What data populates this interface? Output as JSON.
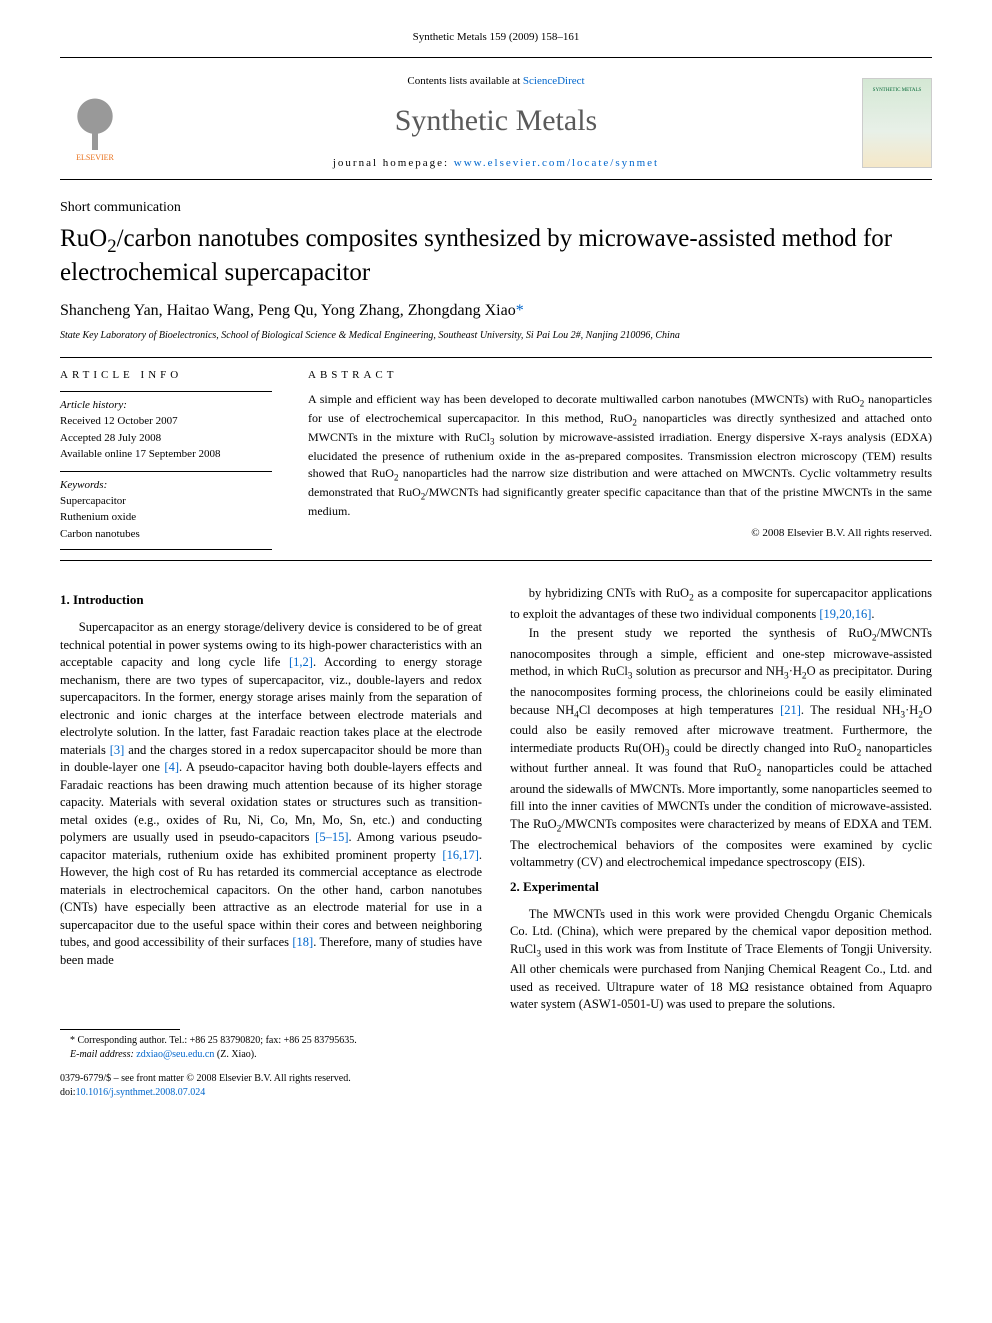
{
  "header": {
    "running_head": "Synthetic Metals 159 (2009) 158–161",
    "contents_prefix": "Contents lists available at ",
    "contents_link": "ScienceDirect",
    "journal_title": "Synthetic Metals",
    "homepage_prefix": "journal homepage: ",
    "homepage_url": "www.elsevier.com/locate/synmet",
    "publisher_name": "ELSEVIER",
    "cover_label": "SYNTHETIC METALS"
  },
  "article": {
    "type": "Short communication",
    "title_html": "RuO<sub>2</sub>/carbon nanotubes composites synthesized by microwave-assisted method for electrochemical supercapacitor",
    "authors": "Shancheng Yan, Haitao Wang, Peng Qu, Yong Zhang, Zhongdang Xiao",
    "corr_symbol": "*",
    "affiliation": "State Key Laboratory of Bioelectronics, School of Biological Science & Medical Engineering, Southeast University, Si Pai Lou 2#, Nanjing 210096, China"
  },
  "info": {
    "heading": "article info",
    "history_label": "Article history:",
    "received": "Received 12 October 2007",
    "accepted": "Accepted 28 July 2008",
    "online": "Available online 17 September 2008",
    "keywords_label": "Keywords:",
    "keywords": [
      "Supercapacitor",
      "Ruthenium oxide",
      "Carbon nanotubes"
    ]
  },
  "abstract": {
    "heading": "abstract",
    "body_html": "A simple and efficient way has been developed to decorate multiwalled carbon nanotubes (MWCNTs) with RuO<sub>2</sub> nanoparticles for use of electrochemical supercapacitor. In this method, RuO<sub>2</sub> nanoparticles was directly synthesized and attached onto MWCNTs in the mixture with RuCl<sub>3</sub> solution by microwave-assisted irradiation. Energy dispersive X-rays analysis (EDXA) elucidated the presence of ruthenium oxide in the as-prepared composites. Transmission electron microscopy (TEM) results showed that RuO<sub>2</sub> nanoparticles had the narrow size distribution and were attached on MWCNTs. Cyclic voltammetry results demonstrated that RuO<sub>2</sub>/MWCNTs had significantly greater specific capacitance than that of the pristine MWCNTs in the same medium.",
    "copyright": "© 2008 Elsevier B.V. All rights reserved."
  },
  "sections": {
    "intro_heading": "1.  Introduction",
    "intro_p1_html": "Supercapacitor as an energy storage/delivery device is considered to be of great technical potential in power systems owing to its high-power characteristics with an acceptable capacity and long cycle life <span class=\"cite\">[1,2]</span>. According to energy storage mechanism, there are two types of supercapacitor, viz., double-layers and redox supercapacitors. In the former, energy storage arises mainly from the separation of electronic and ionic charges at the interface between electrode materials and electrolyte solution. In the latter, fast Faradaic reaction takes place at the electrode materials <span class=\"cite\">[3]</span> and the charges stored in a redox supercapacitor should be more than in double-layer one <span class=\"cite\">[4]</span>. A pseudo-capacitor having both double-layers effects and Faradaic reactions has been drawing much attention because of its higher storage capacity. Materials with several oxidation states or structures such as transition-metal oxides (e.g., oxides of Ru, Ni, Co, Mn, Mo, Sn, etc.) and conducting polymers are usually used in pseudo-capacitors <span class=\"cite\">[5–15]</span>. Among various pseudo-capacitor materials, ruthenium oxide has exhibited prominent property <span class=\"cite\">[16,17]</span>. However, the high cost of Ru has retarded its commercial acceptance as electrode materials in electrochemical capacitors. On the other hand, carbon nanotubes (CNTs) have especially been attractive as an electrode material for use in a supercapacitor due to the useful space within their cores and between neighboring tubes, and good accessibility of their surfaces <span class=\"cite\">[18]</span>. Therefore, many of studies have been made",
    "intro_p1b_html": "by hybridizing CNTs with RuO<sub>2</sub> as a composite for supercapacitor applications to exploit the advantages of these two individual components <span class=\"cite\">[19,20,16]</span>.",
    "intro_p2_html": "In the present study we reported the synthesis of RuO<sub>2</sub>/MWCNTs nanocomposites through a simple, efficient and one-step microwave-assisted method, in which RuCl<sub>3</sub> solution as precursor and NH<sub>3</sub>·H<sub>2</sub>O as precipitator. During the nanocomposites forming process, the chlorineions could be easily eliminated because NH<sub>4</sub>Cl decomposes at high temperatures <span class=\"cite\">[21]</span>. The residual NH<sub>3</sub>·H<sub>2</sub>O could also be easily removed after microwave treatment. Furthermore, the intermediate products Ru(OH)<sub>3</sub> could be directly changed into RuO<sub>2</sub> nanoparticles without further anneal. It was found that RuO<sub>2</sub> nanoparticles could be attached around the sidewalls of MWCNTs. More importantly, some nanoparticles seemed to fill into the inner cavities of MWCNTs under the condition of microwave-assisted. The RuO<sub>2</sub>/MWCNTs composites were characterized by means of EDXA and TEM. The electrochemical behaviors of the composites were examined by cyclic voltammetry (CV) and electrochemical impedance spectroscopy (EIS).",
    "exp_heading": "2.  Experimental",
    "exp_p1_html": "The MWCNTs used in this work were provided Chengdu Organic Chemicals Co. Ltd. (China), which were prepared by the chemical vapor deposition method. RuCl<sub>3</sub> used in this work was from Institute of Trace Elements of Tongji University. All other chemicals were purchased from Nanjing Chemical Reagent Co., Ltd. and used as received. Ultrapure water of 18 MΩ resistance obtained from Aquapro water system (ASW1-0501-U) was used to prepare the solutions."
  },
  "footnote": {
    "corr": "* Corresponding author. Tel.: +86 25 83790820; fax: +86 25 83795635.",
    "email_label": "E-mail address: ",
    "email": "zdxiao@seu.edu.cn",
    "email_suffix": " (Z. Xiao)."
  },
  "bottom": {
    "issn_line": "0379-6779/$ – see front matter © 2008 Elsevier B.V. All rights reserved.",
    "doi_prefix": "doi:",
    "doi": "10.1016/j.synthmet.2008.07.024"
  },
  "colors": {
    "link": "#0066cc",
    "elsevier": "#e9711c"
  }
}
